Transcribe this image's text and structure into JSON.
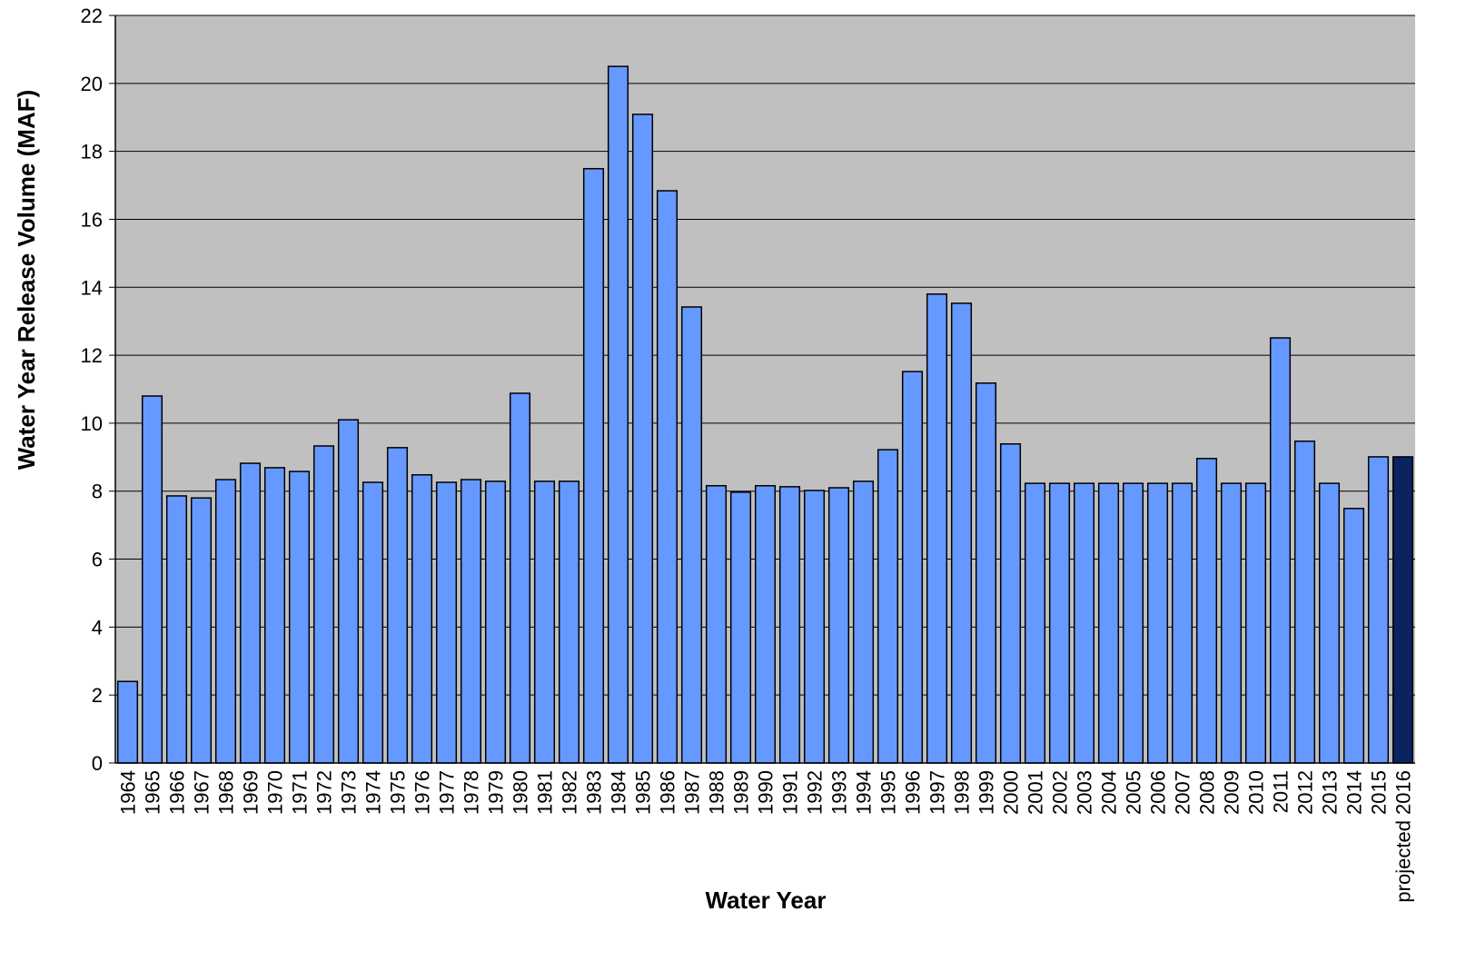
{
  "chart_data": {
    "type": "bar",
    "categories": [
      "1964",
      "1965",
      "1966",
      "1967",
      "1968",
      "1969",
      "1970",
      "1971",
      "1972",
      "1973",
      "1974",
      "1975",
      "1976",
      "1977",
      "1978",
      "1979",
      "1980",
      "1981",
      "1982",
      "1983",
      "1984",
      "1985",
      "1986",
      "1987",
      "1988",
      "1989",
      "1990",
      "1991",
      "1992",
      "1993",
      "1994",
      "1995",
      "1996",
      "1997",
      "1998",
      "1999",
      "2000",
      "2001",
      "2002",
      "2003",
      "2004",
      "2005",
      "2006",
      "2007",
      "2008",
      "2009",
      "2010",
      "2011",
      "2012",
      "2013",
      "2014",
      "2015",
      "projected 2016"
    ],
    "values": [
      2.4,
      10.8,
      7.86,
      7.8,
      8.34,
      8.82,
      8.69,
      8.58,
      9.33,
      10.1,
      8.26,
      9.28,
      8.48,
      8.26,
      8.34,
      8.29,
      10.88,
      8.29,
      8.29,
      17.49,
      20.5,
      19.09,
      16.84,
      13.42,
      8.16,
      7.97,
      8.16,
      8.13,
      8.02,
      8.1,
      8.29,
      9.22,
      11.52,
      13.8,
      13.53,
      11.18,
      9.39,
      8.23,
      8.23,
      8.23,
      8.23,
      8.23,
      8.23,
      8.23,
      8.96,
      8.23,
      8.23,
      12.51,
      9.47,
      8.23,
      7.49,
      9.01,
      9.01
    ],
    "colors": [
      "#6699ff",
      "#6699ff",
      "#6699ff",
      "#6699ff",
      "#6699ff",
      "#6699ff",
      "#6699ff",
      "#6699ff",
      "#6699ff",
      "#6699ff",
      "#6699ff",
      "#6699ff",
      "#6699ff",
      "#6699ff",
      "#6699ff",
      "#6699ff",
      "#6699ff",
      "#6699ff",
      "#6699ff",
      "#6699ff",
      "#6699ff",
      "#6699ff",
      "#6699ff",
      "#6699ff",
      "#6699ff",
      "#6699ff",
      "#6699ff",
      "#6699ff",
      "#6699ff",
      "#6699ff",
      "#6699ff",
      "#6699ff",
      "#6699ff",
      "#6699ff",
      "#6699ff",
      "#6699ff",
      "#6699ff",
      "#6699ff",
      "#6699ff",
      "#6699ff",
      "#6699ff",
      "#6699ff",
      "#6699ff",
      "#6699ff",
      "#6699ff",
      "#6699ff",
      "#6699ff",
      "#6699ff",
      "#6699ff",
      "#6699ff",
      "#6699ff",
      "#6699ff",
      "#0a2460"
    ],
    "x_label": "Water Year",
    "y_label": "Water Year Release Volume (MAF)",
    "ylim": [
      0,
      22
    ],
    "yticks": [
      0,
      2,
      4,
      6,
      8,
      10,
      12,
      14,
      16,
      18,
      20,
      22
    ],
    "grid": true
  }
}
